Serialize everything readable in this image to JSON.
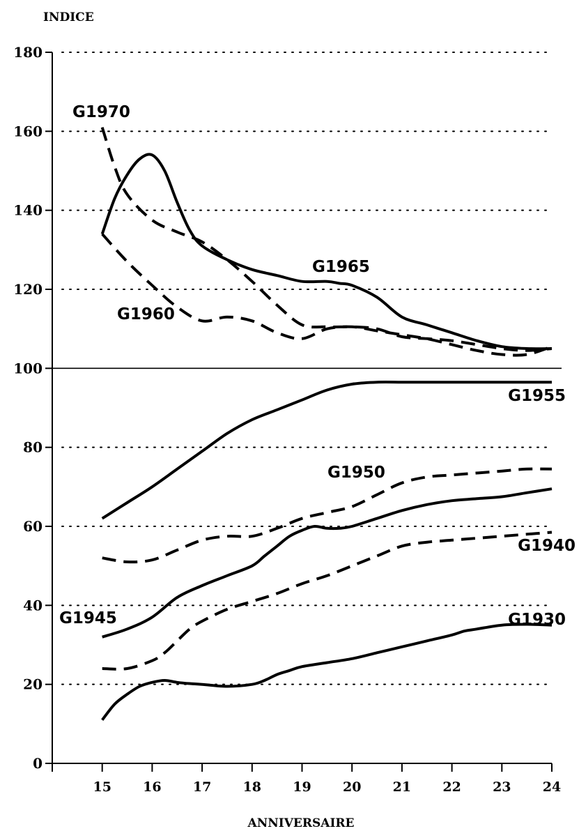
{
  "chart_data": {
    "type": "line",
    "title": "",
    "ylabel": "INDICE",
    "xlabel": "ANNIVERSAIRE",
    "xlim": [
      14,
      24
    ],
    "ylim": [
      0,
      180
    ],
    "x_ticks": [
      15,
      16,
      17,
      18,
      19,
      20,
      21,
      22,
      23,
      24
    ],
    "x_tick_labels": [
      "15",
      "16",
      "17",
      "18",
      "19",
      "20",
      "21",
      "22",
      "23",
      "24"
    ],
    "y_ticks": [
      0,
      20,
      40,
      60,
      80,
      100,
      120,
      140,
      160,
      180
    ],
    "y_tick_labels": [
      "0",
      "20",
      "40",
      "60",
      "80",
      "100",
      "120",
      "140",
      "160",
      "180"
    ],
    "grid": "dotted horizontal",
    "reference_line": 100,
    "series": [
      {
        "name": "G1930",
        "style": "solid",
        "x": [
          15,
          15.25,
          15.5,
          15.75,
          16,
          16.25,
          16.5,
          16.75,
          17,
          17.5,
          18,
          18.25,
          18.5,
          18.75,
          19,
          19.5,
          20,
          20.5,
          21,
          21.5,
          22,
          22.25,
          22.5,
          23,
          23.5,
          24
        ],
        "y": [
          11,
          15,
          17.5,
          19.5,
          20.5,
          21,
          20.5,
          20.2,
          20,
          19.5,
          20,
          21,
          22.5,
          23.5,
          24.5,
          25.5,
          26.5,
          28,
          29.5,
          31,
          32.5,
          33.5,
          34,
          35,
          35.2,
          35
        ]
      },
      {
        "name": "G1940",
        "style": "dashed",
        "x": [
          15,
          15.5,
          16,
          16.25,
          16.5,
          16.75,
          17,
          17.5,
          18,
          18.5,
          19,
          19.5,
          20,
          20.5,
          21,
          21.5,
          22,
          22.5,
          23,
          23.5,
          24
        ],
        "y": [
          24,
          24,
          26,
          28,
          31,
          34,
          36,
          39,
          41,
          43,
          45.5,
          47.5,
          50,
          52.5,
          55,
          56,
          56.5,
          57,
          57.5,
          58,
          58.5
        ]
      },
      {
        "name": "G1945",
        "style": "solid",
        "x": [
          15,
          15.5,
          16,
          16.5,
          17,
          17.5,
          18,
          18.25,
          18.5,
          18.75,
          19,
          19.25,
          19.5,
          19.75,
          20,
          20.5,
          21,
          21.5,
          22,
          22.5,
          23,
          23.5,
          24
        ],
        "y": [
          32,
          34,
          37,
          42,
          45,
          47.5,
          50,
          52.5,
          55,
          57.5,
          59,
          60,
          59.5,
          59.5,
          60,
          62,
          64,
          65.5,
          66.5,
          67,
          67.5,
          68.5,
          69.5
        ]
      },
      {
        "name": "G1950",
        "style": "dashed",
        "x": [
          15,
          15.5,
          16,
          16.5,
          17,
          17.5,
          18,
          18.5,
          19,
          19.5,
          20,
          20.5,
          21,
          21.5,
          22,
          22.5,
          23,
          23.5,
          24
        ],
        "y": [
          52,
          51,
          51.5,
          54,
          56.5,
          57.5,
          57.5,
          59.5,
          62,
          63.5,
          65,
          68,
          71,
          72.5,
          73,
          73.5,
          74,
          74.5,
          74.5
        ]
      },
      {
        "name": "G1955",
        "style": "solid",
        "x": [
          15,
          15.5,
          16,
          16.5,
          17,
          17.5,
          18,
          18.5,
          19,
          19.5,
          20,
          20.5,
          21,
          21.5,
          22,
          22.5,
          23,
          23.5,
          24
        ],
        "y": [
          62,
          66,
          70,
          74.5,
          79,
          83.5,
          87,
          89.5,
          92,
          94.5,
          96,
          96.5,
          96.5,
          96.5,
          96.5,
          96.5,
          96.5,
          96.5,
          96.5
        ]
      },
      {
        "name": "G1960",
        "style": "dashed",
        "x": [
          15,
          15.5,
          16,
          16.5,
          17,
          17.5,
          18,
          18.5,
          19,
          19.5,
          20,
          20.5,
          21,
          21.5,
          22,
          22.5,
          23,
          23.5,
          24
        ],
        "y": [
          134,
          127,
          121,
          115.5,
          112,
          113,
          112,
          109,
          107.5,
          110,
          110.5,
          109.5,
          108.5,
          107.5,
          106,
          104.5,
          103.5,
          103.5,
          105.5
        ]
      },
      {
        "name": "G1965",
        "style": "solid",
        "x": [
          15,
          15.25,
          15.5,
          15.75,
          16,
          16.25,
          16.5,
          16.75,
          17,
          17.5,
          18,
          18.5,
          19,
          19.5,
          19.75,
          20,
          20.5,
          21,
          21.5,
          22,
          22.5,
          23,
          23.5,
          24
        ],
        "y": [
          134,
          143,
          149,
          153,
          154,
          150,
          142,
          135,
          131,
          127.5,
          125,
          123.5,
          122,
          122,
          121.5,
          121,
          118,
          113,
          111,
          109,
          107,
          105.5,
          105,
          105
        ]
      },
      {
        "name": "G1970",
        "style": "dashed",
        "x": [
          15,
          15.25,
          15.5,
          16,
          16.5,
          17,
          17.5,
          18,
          18.5,
          19,
          19.5,
          20,
          20.5,
          21,
          21.5,
          22,
          22.5,
          23,
          23.5,
          24
        ],
        "y": [
          161,
          151,
          144,
          137.5,
          134.5,
          132,
          127.5,
          122,
          116,
          111,
          110.5,
          110.5,
          110,
          108,
          107.5,
          107,
          106,
          105,
          104.5,
          105
        ]
      }
    ]
  }
}
